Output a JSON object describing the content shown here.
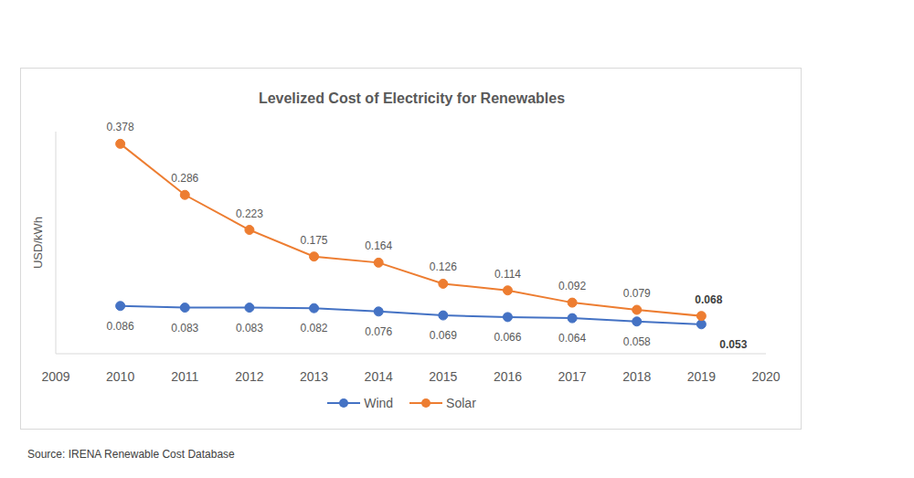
{
  "chart_data": {
    "type": "line",
    "title": "Levelized Cost of Electricity for Renewables",
    "ylabel": "USD/kWh",
    "source": "Source: IRENA Renewable Cost Database",
    "x": [
      2010,
      2011,
      2012,
      2013,
      2014,
      2015,
      2016,
      2017,
      2018,
      2019
    ],
    "series": [
      {
        "name": "Wind",
        "color": "#4472c4",
        "marker": "circle",
        "values": [
          0.086,
          0.083,
          0.083,
          0.082,
          0.076,
          0.069,
          0.066,
          0.064,
          0.058,
          0.053
        ]
      },
      {
        "name": "Solar",
        "color": "#ed7d31",
        "marker": "circle",
        "values": [
          0.378,
          0.286,
          0.223,
          0.175,
          0.164,
          0.126,
          0.114,
          0.092,
          0.079,
          0.068
        ]
      }
    ],
    "xlim": [
      2009,
      2020
    ],
    "xticks": [
      2009,
      2010,
      2011,
      2012,
      2013,
      2014,
      2015,
      2016,
      2017,
      2018,
      2019,
      2020
    ],
    "ylim": [
      0,
      0.4
    ],
    "yticks": [],
    "grid": false,
    "legend": "bottom",
    "data_labels": true,
    "tick_labels": "x"
  }
}
